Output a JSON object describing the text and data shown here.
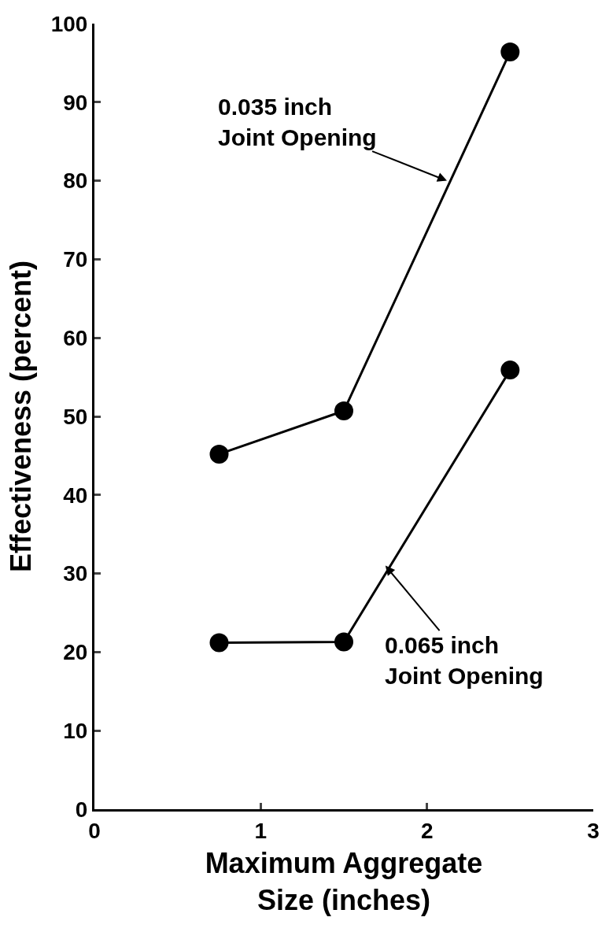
{
  "chart_data": {
    "type": "line",
    "xlabel": "Maximum Aggregate\nSize (inches)",
    "ylabel": "Effectiveness (percent)",
    "x": [
      0.75,
      1.5,
      2.5
    ],
    "series": [
      {
        "color": "#000000",
        "values": [
          45.2,
          50.7,
          96.4
        ]
      },
      {
        "color": "#000000",
        "values": [
          21.2,
          21.3,
          55.9
        ]
      }
    ],
    "xlim": [
      0,
      3
    ],
    "xticks": [
      0,
      1,
      2,
      3
    ],
    "ylim": [
      0,
      100
    ],
    "yticks": [
      0,
      10,
      20,
      30,
      40,
      50,
      60,
      70,
      80,
      90,
      100
    ],
    "marker": "circle",
    "line_style": "solid",
    "legend": false,
    "annotations": [
      {
        "text": "0.035 inch\nJoint Opening",
        "x": 2.12,
        "y": 80
      },
      {
        "text": "0.065 inch\nJoint Opening",
        "x": 1.75,
        "y": 31
      }
    ]
  }
}
